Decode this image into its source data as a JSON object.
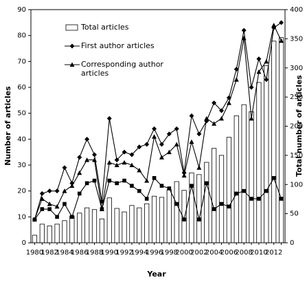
{
  "chart_data": {
    "type": "bar_line",
    "xlabel": "Year",
    "ylabel": "Number of articles",
    "y2label": "Total number of articles",
    "categories": [
      "1980",
      null,
      "1982",
      null,
      "1984",
      null,
      "1986",
      null,
      "1988",
      null,
      "1990",
      null,
      "1992",
      null,
      "1994",
      null,
      "1996",
      null,
      "1998",
      null,
      "2000",
      null,
      "2002",
      null,
      "2004",
      null,
      "2006",
      null,
      "2008",
      null,
      "2010",
      null,
      "2012",
      null
    ],
    "ylim": [
      0,
      90
    ],
    "yticks": [
      0,
      10,
      20,
      30,
      40,
      50,
      60,
      70,
      80,
      90
    ],
    "y2lim": [
      0,
      400
    ],
    "y2ticks": [
      0,
      50,
      100,
      150,
      200,
      250,
      300,
      350,
      400
    ],
    "series": [
      {
        "name": "Total articles",
        "type": "bar",
        "axis": "y2",
        "color": "#ffffff",
        "values": [
          13,
          32,
          29,
          32,
          38,
          46,
          51,
          60,
          57,
          41,
          77,
          59,
          53,
          64,
          60,
          67,
          80,
          78,
          91,
          105,
          90,
          120,
          117,
          138,
          162,
          150,
          181,
          218,
          237,
          225,
          275,
          304,
          346,
          352
        ]
      },
      {
        "name": "First author articles",
        "type": "line",
        "marker": "diamond",
        "color": "#000000",
        "values": [
          9,
          19,
          20,
          20,
          29,
          23,
          33,
          40,
          34,
          16,
          48,
          32,
          35,
          34,
          37,
          38,
          44,
          38,
          42,
          44,
          27,
          49,
          42,
          47,
          54,
          51,
          56,
          67,
          82,
          60,
          71,
          63,
          83,
          85
        ]
      },
      {
        "name": "Corresponding author articles",
        "type": "line",
        "marker": "triangle",
        "color": "#000000",
        "values": [
          9,
          17,
          15,
          14,
          20,
          22,
          27,
          32,
          32,
          13,
          31,
          30,
          31,
          30,
          28,
          24,
          41,
          33,
          35,
          38,
          26,
          39,
          29,
          48,
          46,
          48,
          54,
          63,
          79,
          48,
          66,
          70,
          84,
          78
        ]
      },
      {
        "type": "line",
        "marker": "circle",
        "color": "#000000",
        "values": [
          9,
          13,
          13,
          10,
          15,
          10,
          19,
          23,
          24,
          13,
          24,
          23,
          24,
          22,
          20,
          17,
          25,
          22,
          21,
          15,
          9,
          22,
          9,
          23,
          13,
          15,
          14,
          19,
          20,
          17,
          17,
          20,
          25,
          17
        ]
      }
    ]
  }
}
